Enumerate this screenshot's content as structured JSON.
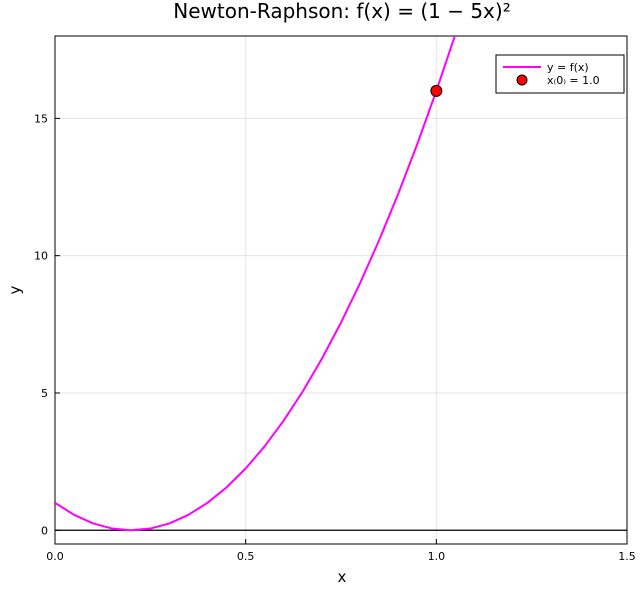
{
  "chart_data": {
    "type": "line",
    "title": "Newton-Raphson: f(x) = (1 − 5x)²",
    "xlabel": "x",
    "ylabel": "y",
    "xlim": [
      0,
      1.5
    ],
    "ylim": [
      -0.5,
      18
    ],
    "x_ticks": [
      0,
      0.5,
      1,
      1.5
    ],
    "x_tick_labels": [
      "0.0",
      "0.5",
      "1.0",
      "1.5"
    ],
    "y_ticks": [
      0,
      5,
      10,
      15
    ],
    "y_tick_labels": [
      "0",
      "5",
      "10",
      "15"
    ],
    "grid": true,
    "legend_position": "top-right",
    "series": [
      {
        "name": "y = f(x)",
        "type": "line",
        "color": "#ff00ff",
        "function": "(1 - 5x)^2",
        "x": [
          0,
          0.05,
          0.1,
          0.15,
          0.2,
          0.25,
          0.3,
          0.35,
          0.4,
          0.45,
          0.5,
          0.55,
          0.6,
          0.65,
          0.7,
          0.75,
          0.8,
          0.85,
          0.9,
          0.95,
          1.0,
          1.05
        ],
        "y": [
          1,
          0.5625,
          0.25,
          0.0625,
          0,
          0.0625,
          0.25,
          0.5625,
          1,
          1.5625,
          2.25,
          3.0625,
          4,
          5.0625,
          6.25,
          7.5625,
          9,
          10.5625,
          12.25,
          14.0625,
          16,
          18.0625
        ]
      },
      {
        "name": "x₍0₎ = 1.0",
        "type": "scatter",
        "color": "#ff0000",
        "x": [
          1.0
        ],
        "y": [
          16
        ]
      }
    ],
    "reference_lines": [
      {
        "orientation": "horizontal",
        "y": 0,
        "color": "#000000"
      }
    ]
  }
}
